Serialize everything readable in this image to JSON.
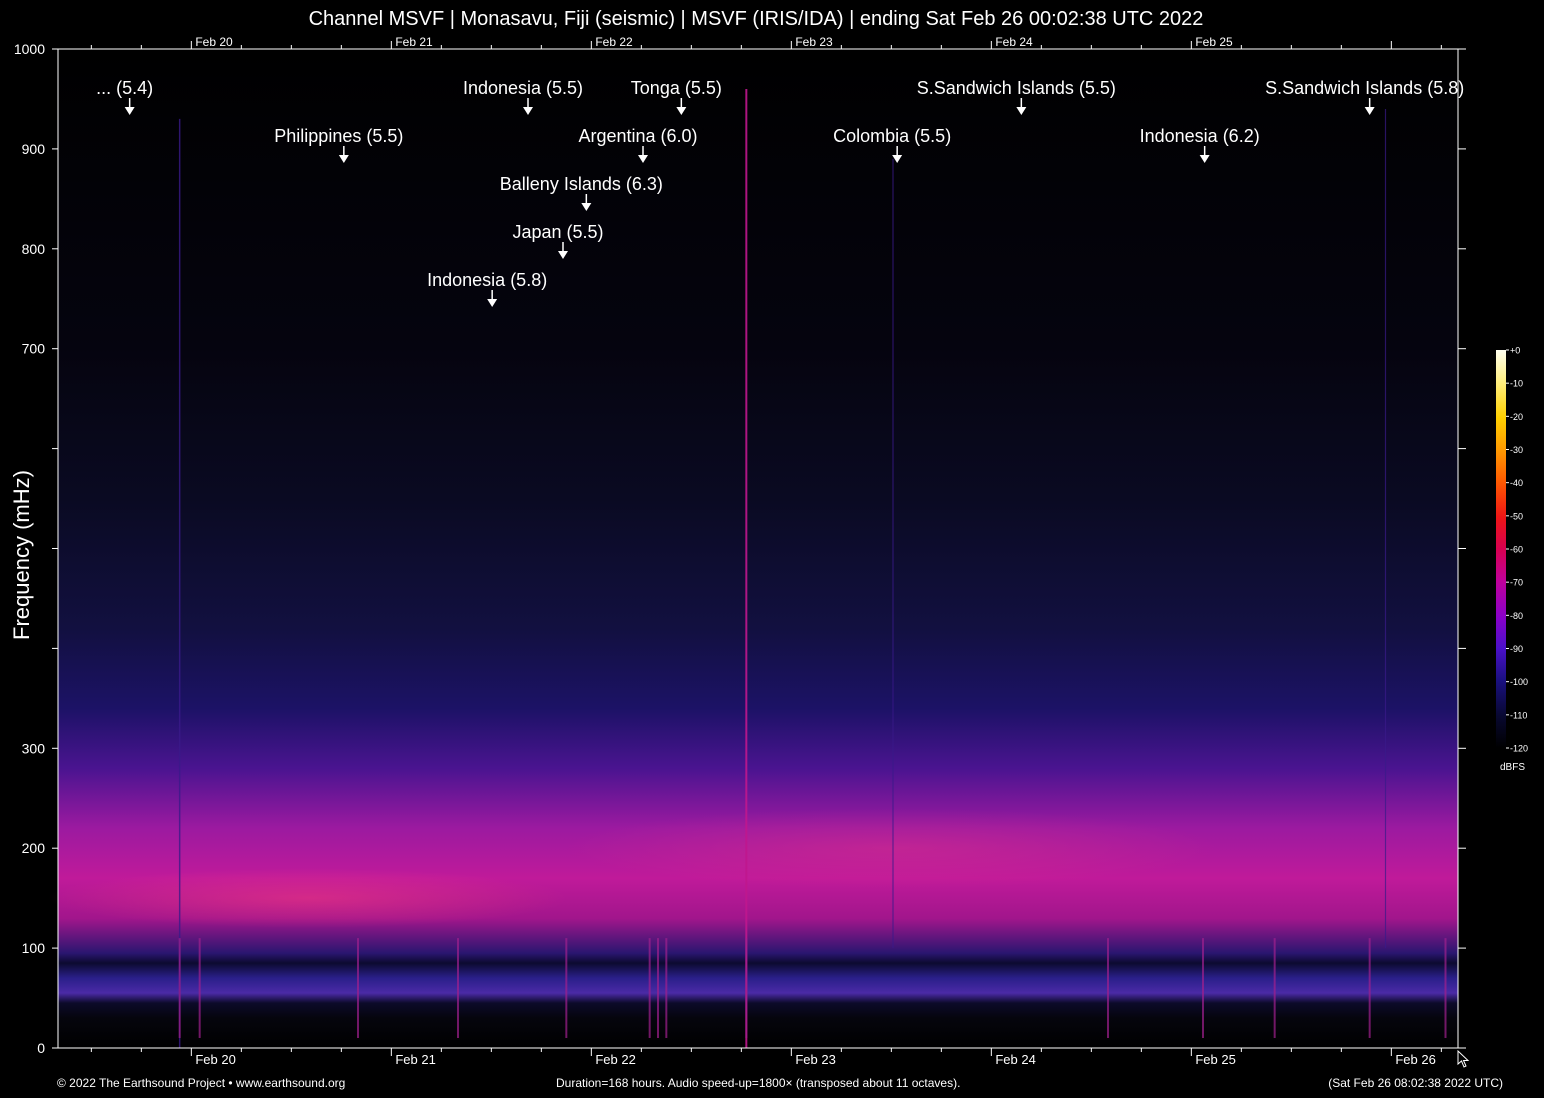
{
  "title": "Channel MSVF | Monasavu, Fiji (seismic) | MSVF (IRIS/IDA) | ending Sat Feb 26 00:02:38 UTC 2022",
  "footer": {
    "left": "© 2022 The Earthsound Project • www.earthsound.org",
    "middle": "Duration=168 hours. Audio speed-up=1800× (transposed about 11 octaves).",
    "right": "(Sat Feb 26 08:02:38 2022 UTC)"
  },
  "colors": {
    "background": "#000000",
    "axis": "#ffffff",
    "noise_band": "#c01a9a",
    "low_band": "#2a1f8a"
  },
  "cursor_icon": "mouse-pointer-icon",
  "chart_data": {
    "type": "heatmap",
    "title": "Channel MSVF | Monasavu, Fiji (seismic) | MSVF (IRIS/IDA) | ending Sat Feb 26 00:02:38 UTC 2022",
    "ylabel": "Frequency (mHz)",
    "xlabel": "",
    "x_unit": "hours",
    "xlim": [
      0,
      168
    ],
    "ylim": [
      0,
      1000
    ],
    "yticks_labeled": [
      0,
      100,
      200,
      300,
      700,
      800,
      900,
      1000
    ],
    "yticks_all": [
      0,
      100,
      200,
      300,
      400,
      500,
      600,
      700,
      800,
      900,
      1000
    ],
    "top_date_labels": [
      {
        "label": "Feb 20",
        "hour": 16
      },
      {
        "label": "Feb 21",
        "hour": 40
      },
      {
        "label": "Feb 22",
        "hour": 64
      },
      {
        "label": "Feb 23",
        "hour": 88
      },
      {
        "label": "Feb 24",
        "hour": 112
      },
      {
        "label": "Feb 25",
        "hour": 136
      }
    ],
    "bottom_date_labels": [
      {
        "label": "Feb 20",
        "hour": 16
      },
      {
        "label": "Feb 21",
        "hour": 40
      },
      {
        "label": "Feb 22",
        "hour": 64
      },
      {
        "label": "Feb 23",
        "hour": 88
      },
      {
        "label": "Feb 24",
        "hour": 112
      },
      {
        "label": "Feb 25",
        "hour": 136
      },
      {
        "label": "Feb 26",
        "hour": 160
      }
    ],
    "colorbar": {
      "unit": "dBFS",
      "ticks": [
        "+0",
        "-10",
        "-20",
        "-30",
        "-40",
        "-50",
        "-60",
        "-70",
        "-80",
        "-90",
        "-100",
        "-110",
        "-120"
      ],
      "colors": [
        "#fffff0",
        "#ffef80",
        "#ffd000",
        "#ff9a00",
        "#ff5a00",
        "#ee1515",
        "#d80050",
        "#c0009a",
        "#8a00c8",
        "#4a10c8",
        "#1a1080",
        "#080830",
        "#000000"
      ]
    },
    "events": [
      {
        "label": "... (5.4)",
        "hour": 8.6,
        "freq": 950,
        "row": 0
      },
      {
        "label": "Indonesia (5.5)",
        "hour": 56.4,
        "freq": 950,
        "row": 0
      },
      {
        "label": "Tonga (5.5)",
        "hour": 74.8,
        "freq": 950,
        "row": 0
      },
      {
        "label": "S.Sandwich Islands (5.5)",
        "hour": 115.6,
        "freq": 950,
        "row": 0
      },
      {
        "label": "S.Sandwich Islands (5.8)",
        "hour": 157.4,
        "freq": 950,
        "row": 0
      },
      {
        "label": "Philippines (5.5)",
        "hour": 34.3,
        "freq": 902,
        "row": 1
      },
      {
        "label": "Argentina (6.0)",
        "hour": 70.2,
        "freq": 902,
        "row": 1
      },
      {
        "label": "Colombia (5.5)",
        "hour": 100.7,
        "freq": 902,
        "row": 1
      },
      {
        "label": "Indonesia (6.2)",
        "hour": 137.6,
        "freq": 902,
        "row": 1
      },
      {
        "label": "Balleny Islands (6.3)",
        "hour": 63.4,
        "freq": 854,
        "row": 2
      },
      {
        "label": "Japan (5.5)",
        "hour": 60.6,
        "freq": 806,
        "row": 3
      },
      {
        "label": "Indonesia (5.8)",
        "hour": 52.1,
        "freq": 758,
        "row": 4
      }
    ],
    "grid": false,
    "legend": "right"
  }
}
